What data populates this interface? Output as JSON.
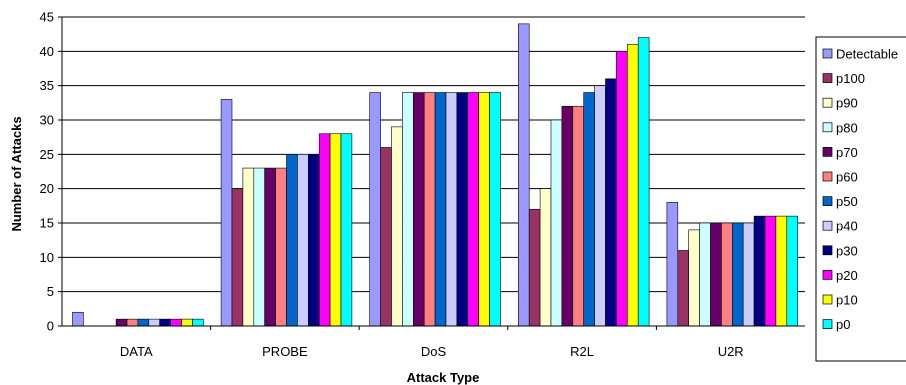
{
  "chart_data": {
    "type": "bar",
    "title": "",
    "xlabel": "Attack Type",
    "ylabel": "Number of Attacks",
    "ylim": [
      0,
      45
    ],
    "yticks": [
      0,
      5,
      10,
      15,
      20,
      25,
      30,
      35,
      40,
      45
    ],
    "grid": true,
    "legend_position": "right",
    "categories": [
      "DATA",
      "PROBE",
      "DoS",
      "R2L",
      "U2R"
    ],
    "series": [
      {
        "name": "Detectable",
        "color": "#9999ff",
        "values": [
          2,
          33,
          34,
          44,
          18
        ]
      },
      {
        "name": "p100",
        "color": "#993366",
        "values": [
          0,
          20,
          26,
          17,
          11
        ]
      },
      {
        "name": "p90",
        "color": "#ffffcc",
        "values": [
          0,
          23,
          29,
          20,
          14
        ]
      },
      {
        "name": "p80",
        "color": "#ccffff",
        "values": [
          0,
          23,
          34,
          30,
          15
        ]
      },
      {
        "name": "p70",
        "color": "#660066",
        "values": [
          1,
          23,
          34,
          32,
          15
        ]
      },
      {
        "name": "p60",
        "color": "#ff8080",
        "values": [
          1,
          23,
          34,
          32,
          15
        ]
      },
      {
        "name": "p50",
        "color": "#0066cc",
        "values": [
          1,
          25,
          34,
          34,
          15
        ]
      },
      {
        "name": "p40",
        "color": "#ccccff",
        "values": [
          1,
          25,
          34,
          35,
          15
        ]
      },
      {
        "name": "p30",
        "color": "#000080",
        "values": [
          1,
          25,
          34,
          36,
          16
        ]
      },
      {
        "name": "p20",
        "color": "#ff00ff",
        "values": [
          1,
          28,
          34,
          40,
          16
        ]
      },
      {
        "name": "p10",
        "color": "#ffff00",
        "values": [
          1,
          28,
          34,
          41,
          16
        ]
      },
      {
        "name": "p0",
        "color": "#00ffff",
        "values": [
          1,
          28,
          34,
          42,
          16
        ]
      }
    ]
  }
}
